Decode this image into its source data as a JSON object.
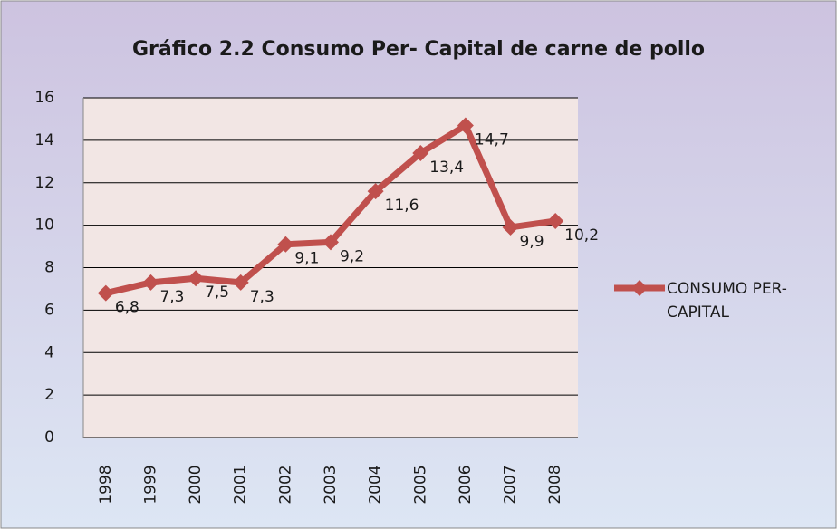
{
  "chart_data": {
    "type": "line",
    "title": "Gráfico 2.2 Consumo Per- Capital de carne de pollo",
    "categories": [
      "1998",
      "1999",
      "2000",
      "2001",
      "2002",
      "2003",
      "2004",
      "2005",
      "2006",
      "2007",
      "2008"
    ],
    "series": [
      {
        "name": "CONSUMO PER-CAPITAL",
        "color": "#c0504d",
        "values": [
          6.8,
          7.3,
          7.5,
          7.3,
          9.1,
          9.2,
          11.6,
          13.4,
          14.7,
          9.9,
          10.2
        ],
        "value_labels": [
          "6,8",
          "7,3",
          "7,5",
          "7,3",
          "9,1",
          "9,2",
          "11,6",
          "13,4",
          "14,7",
          "9,9",
          "10,2"
        ]
      }
    ],
    "ylim": [
      0,
      16
    ],
    "yticks": [
      0,
      2,
      4,
      6,
      8,
      10,
      12,
      14,
      16
    ],
    "grid": true,
    "legend": "right"
  }
}
